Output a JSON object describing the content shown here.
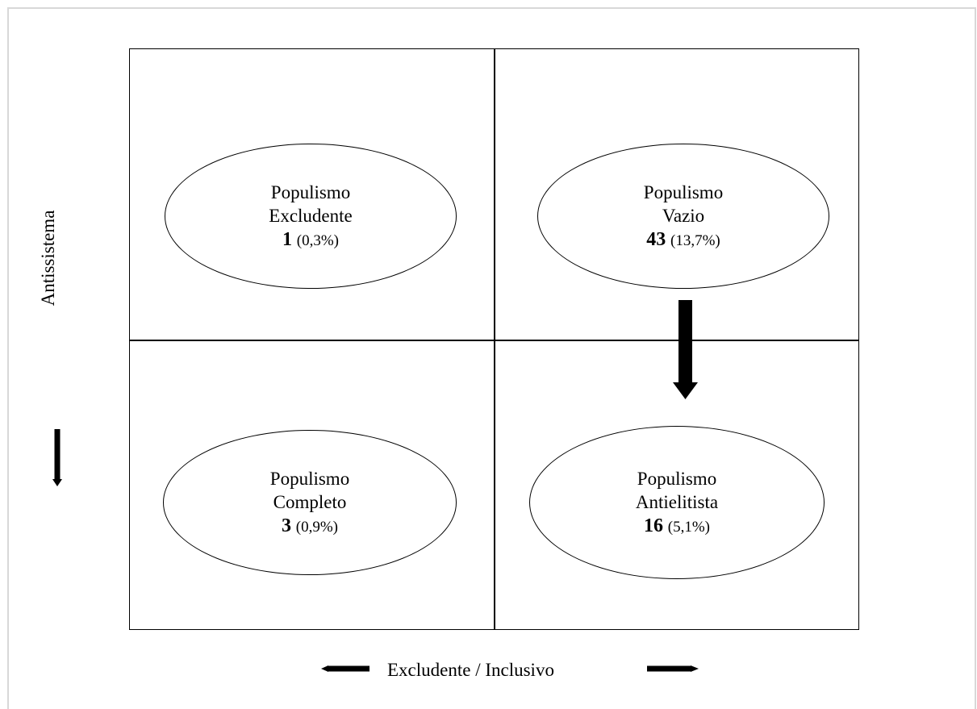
{
  "axes": {
    "vertical_label": "Antissistema",
    "horizontal_label": "Excludente / Inclusivo"
  },
  "quadrants": [
    {
      "name": "Populismo",
      "type": "Excludente",
      "count": "1",
      "percent": "(0,3%)"
    },
    {
      "name": "Populismo",
      "type": "Vazio",
      "count": "43",
      "percent": "(13,7%)"
    },
    {
      "name": "Populismo",
      "type": "Completo",
      "count": "3",
      "percent": "(0,9%)"
    },
    {
      "name": "Populismo",
      "type": "Antielitista",
      "count": "16",
      "percent": "(5,1%)"
    }
  ],
  "colors": {
    "line": "#000000",
    "frame": "#d8d8d8",
    "background": "#ffffff"
  }
}
